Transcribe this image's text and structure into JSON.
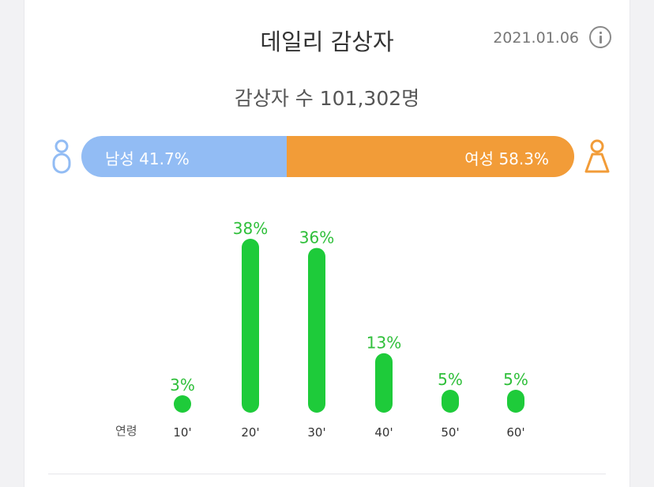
{
  "header": {
    "title": "데일리 감상자",
    "date": "2021.01.06",
    "info_icon": "info-icon"
  },
  "viewers": {
    "label": "감상자 수 101,302명"
  },
  "gender": {
    "male_label": "남성 41.7%",
    "male_share": 41.7,
    "female_label": "여성 58.3%",
    "female_share": 58.3,
    "male_icon": "male-person-icon",
    "female_icon": "female-person-icon"
  },
  "colors": {
    "male": "#92bcf4",
    "female": "#f29c38",
    "bars": "#1ecb3a",
    "bar_labels": "#2fbf3a"
  },
  "chart_data": {
    "type": "bar",
    "xlabel": "연령",
    "categories": [
      "10'",
      "20'",
      "30'",
      "40'",
      "50'",
      "60'"
    ],
    "values": [
      3,
      38,
      36,
      13,
      5,
      5
    ],
    "value_labels": [
      "3%",
      "38%",
      "36%",
      "13%",
      "5%",
      "5%"
    ],
    "ylim": [
      0,
      38
    ],
    "grid": false
  }
}
